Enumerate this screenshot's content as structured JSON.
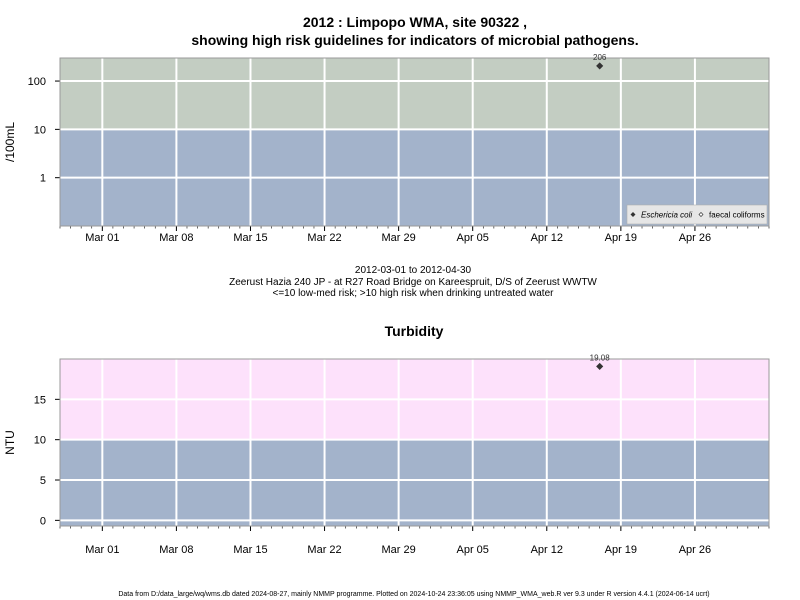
{
  "title": {
    "line1": "2012 : Limpopo WMA, site 90322 ,",
    "line2": "showing high risk guidelines for indicators of microbial pathogens."
  },
  "caption": {
    "date_range": "2012-03-01 to 2012-04-30",
    "site": "Zeerust Hazia 240 JP - at R27 Road Bridge on Kareespruit, D/S of Zeerust WWTW",
    "guideline": "<=10 low-med risk; >10 high risk when drinking untreated water"
  },
  "footer": "Data from D:/data_large/wq/wms.db dated 2024-08-27, mainly NMMP programme. Plotted on 2024-10-24 23:36:05 using NMMP_WMA_web.R ver 9.3 under R version 4.4.1 (2024-06-14 ucrt)",
  "colors": {
    "low_band": "#a3b3cb",
    "high_band_pathogen": "#c3cdc2",
    "high_band_turbidity": "#fde1fb",
    "grid": "#ffffff",
    "frame": "#999999",
    "point": "#333333"
  },
  "chart_data": [
    {
      "type": "scatter",
      "title": "",
      "xlabel": "",
      "ylabel": "/100mL",
      "y_scale": "log10",
      "ylim": [
        0.1,
        300
      ],
      "xlim": [
        "2012-02-26",
        "2012-05-03"
      ],
      "x_ticks": [
        "Mar 01",
        "Mar 08",
        "Mar 15",
        "Mar 22",
        "Mar 29",
        "Apr 05",
        "Apr 12",
        "Apr 19",
        "Apr 26"
      ],
      "x_tick_dates": [
        "2012-03-01",
        "2012-03-08",
        "2012-03-15",
        "2012-03-22",
        "2012-03-29",
        "2012-04-05",
        "2012-04-12",
        "2012-04-19",
        "2012-04-26"
      ],
      "y_ticks": [
        "1",
        "10",
        "100"
      ],
      "y_tick_values": [
        1,
        10,
        100
      ],
      "bands": [
        {
          "from": 0.1,
          "to": 10,
          "level": "low-med risk"
        },
        {
          "from": 10,
          "to": 300,
          "level": "high risk"
        }
      ],
      "grid": true,
      "legend_position": "bottom-right",
      "series": [
        {
          "name": "Eschericia coli",
          "marker": "filled-diamond",
          "points": [
            {
              "x": "2012-04-17",
              "y": 206,
              "label": "206"
            }
          ]
        },
        {
          "name": "faecal coliforms",
          "marker": "open-diamond",
          "points": []
        }
      ]
    },
    {
      "type": "scatter",
      "title": "Turbidity",
      "xlabel": "",
      "ylabel": "NTU",
      "ylim": [
        -0.7,
        20
      ],
      "xlim": [
        "2012-02-26",
        "2012-05-03"
      ],
      "x_ticks": [
        "Mar 01",
        "Mar 08",
        "Mar 15",
        "Mar 22",
        "Mar 29",
        "Apr 05",
        "Apr 12",
        "Apr 19",
        "Apr 26"
      ],
      "x_tick_dates": [
        "2012-03-01",
        "2012-03-08",
        "2012-03-15",
        "2012-03-22",
        "2012-03-29",
        "2012-04-05",
        "2012-04-12",
        "2012-04-19",
        "2012-04-26"
      ],
      "y_ticks": [
        "0",
        "5",
        "10",
        "15"
      ],
      "y_tick_values": [
        0,
        5,
        10,
        15
      ],
      "bands": [
        {
          "from": -0.7,
          "to": 10,
          "level": "low"
        },
        {
          "from": 10,
          "to": 20,
          "level": "high"
        }
      ],
      "grid": true,
      "series": [
        {
          "name": "Turbidity",
          "marker": "filled-diamond",
          "points": [
            {
              "x": "2012-04-17",
              "y": 19.08,
              "label": "19.08"
            }
          ]
        }
      ]
    }
  ]
}
